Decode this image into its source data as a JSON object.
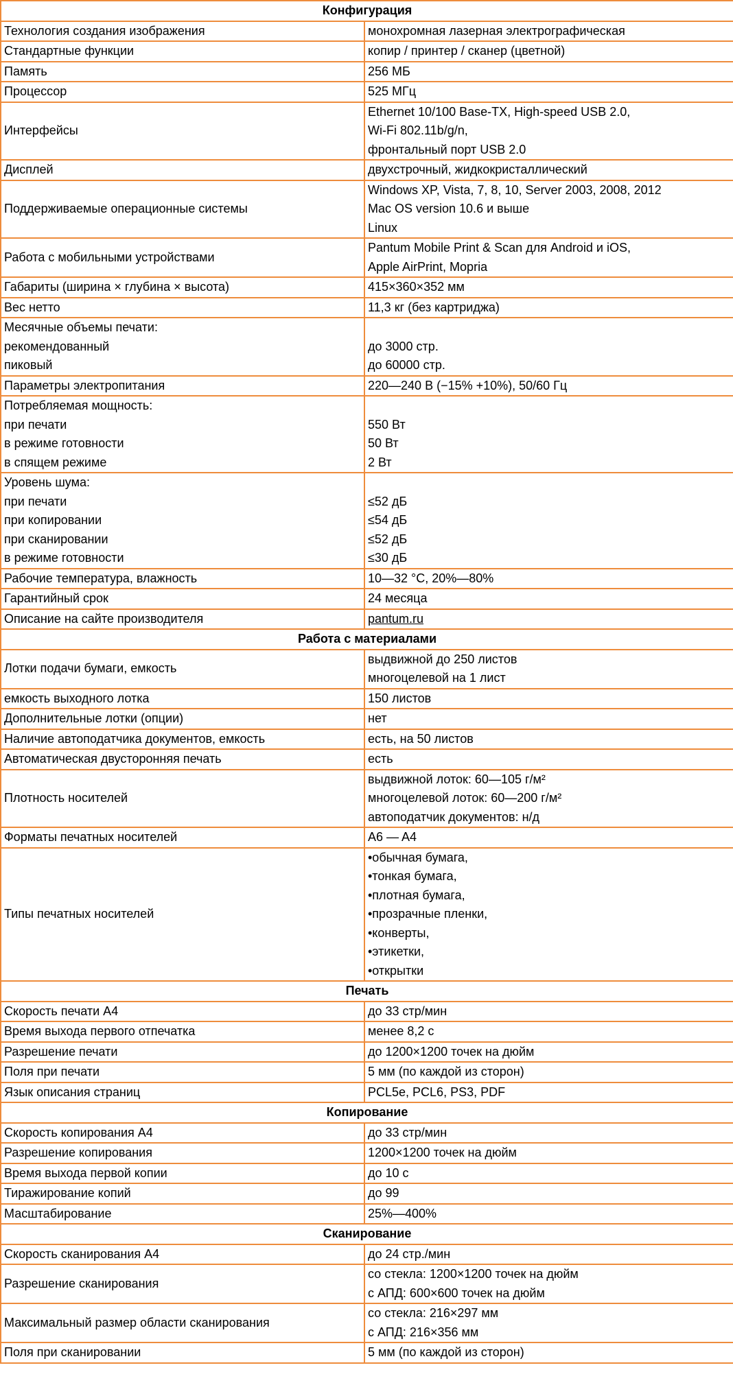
{
  "sections": [
    {
      "title": "Конфигурация",
      "rows": [
        {
          "label": [
            "Технология создания изображения"
          ],
          "value": [
            "монохромная лазерная электрографическая"
          ]
        },
        {
          "label": [
            "Стандартные функции"
          ],
          "value": [
            "копир / принтер / сканер (цветной)"
          ]
        },
        {
          "label": [
            "Память"
          ],
          "value": [
            "256 МБ"
          ]
        },
        {
          "label": [
            "Процессор"
          ],
          "value": [
            "525 МГц"
          ]
        },
        {
          "label": [
            "Интерфейсы"
          ],
          "value": [
            "Ethernet 10/100 Base-TX, High-speed USB 2.0,",
            "Wi-Fi 802.11b/g/n,",
            "фронтальный порт USB 2.0"
          ]
        },
        {
          "label": [
            "Дисплей"
          ],
          "value": [
            "двухстрочный, жидкокристаллический"
          ]
        },
        {
          "label": [
            "Поддерживаемые операционные системы"
          ],
          "value": [
            "Windows XP, Vista, 7, 8, 10, Server 2003, 2008, 2012",
            "Mac OS version 10.6 и выше",
            "Linux"
          ]
        },
        {
          "label": [
            "Работа с мобильными устройствами"
          ],
          "value": [
            "Pantum Mobile Print & Scan для Android и iOS,",
            "Apple AirPrint, Mopria"
          ]
        },
        {
          "label": [
            "Габариты (ширина × глубина × высота)"
          ],
          "value": [
            "415×360×352 мм"
          ]
        },
        {
          "label": [
            "Вес нетто"
          ],
          "value": [
            "11,3 кг (без картриджа)"
          ]
        },
        {
          "label": [
            "Месячные объемы печати:",
            "рекомендованный",
            "пиковый"
          ],
          "value": [
            "до 3000 стр.",
            "до 60000 стр."
          ]
        },
        {
          "label": [
            "Параметры электропитания"
          ],
          "value": [
            "220—240 В (−15% +10%), 50/60 Гц"
          ]
        },
        {
          "label": [
            "Потребляемая мощность:",
            "при печати",
            "в режиме готовности",
            "в спящем режиме"
          ],
          "value": [
            "550 Вт",
            "50 Вт",
            "2 Вт"
          ]
        },
        {
          "label": [
            "Уровень шума:",
            "при печати",
            "при копировании",
            "при сканировании",
            "в режиме готовности"
          ],
          "value": [
            "≤52 дБ",
            "≤54 дБ",
            "≤52 дБ",
            "≤30 дБ"
          ]
        },
        {
          "label": [
            "Рабочие температура, влажность"
          ],
          "value": [
            "10—32 °C, 20%—80%"
          ]
        },
        {
          "label": [
            "Гарантийный срок"
          ],
          "value": [
            "24 месяца"
          ]
        },
        {
          "label": [
            "Описание на сайте производителя"
          ],
          "value": [
            "pantum.ru"
          ],
          "link": true
        }
      ]
    },
    {
      "title": "Работа с материалами",
      "rows": [
        {
          "label": [
            "Лотки подачи бумаги, емкость"
          ],
          "value": [
            "выдвижной до 250 листов",
            "многоцелевой на 1 лист"
          ]
        },
        {
          "label": [
            "емкость выходного лотка"
          ],
          "value": [
            "150 листов"
          ]
        },
        {
          "label": [
            "Дополнительные лотки (опции)"
          ],
          "value": [
            "нет"
          ]
        },
        {
          "label": [
            "Наличие автоподатчика документов, емкость"
          ],
          "value": [
            "есть, на 50 листов"
          ]
        },
        {
          "label": [
            "Автоматическая двусторонняя печать"
          ],
          "value": [
            "есть"
          ]
        },
        {
          "label": [
            "Плотность носителей"
          ],
          "value": [
            "выдвижной лоток: 60—105 г/м²",
            "многоцелевой лоток: 60—200 г/м²",
            "автоподатчик документов: н/д"
          ]
        },
        {
          "label": [
            "Форматы печатных носителей"
          ],
          "value": [
            "A6 — A4"
          ]
        },
        {
          "label": [
            "Типы печатных носителей"
          ],
          "value": [
            "•обычная бумага,",
            "•тонкая бумага,",
            "•плотная бумага,",
            "•прозрачные пленки,",
            "•конверты,",
            "•этикетки,",
            "•открытки"
          ]
        }
      ]
    },
    {
      "title": "Печать",
      "rows": [
        {
          "label": [
            "Скорость печати A4"
          ],
          "value": [
            "до 33 стр/мин"
          ]
        },
        {
          "label": [
            "Время выхода первого отпечатка"
          ],
          "value": [
            "менее 8,2 с"
          ]
        },
        {
          "label": [
            "Разрешение печати"
          ],
          "value": [
            "до 1200×1200 точек на дюйм"
          ]
        },
        {
          "label": [
            "Поля при печати"
          ],
          "value": [
            "5 мм (по каждой из сторон)"
          ]
        },
        {
          "label": [
            "Язык описания страниц"
          ],
          "value": [
            "PCL5e, PCL6, PS3, PDF"
          ]
        }
      ]
    },
    {
      "title": "Копирование",
      "rows": [
        {
          "label": [
            "Скорость копирования A4"
          ],
          "value": [
            "до 33 стр/мин"
          ]
        },
        {
          "label": [
            "Разрешение копирования"
          ],
          "value": [
            "1200×1200 точек на дюйм"
          ]
        },
        {
          "label": [
            "Время выхода первой копии"
          ],
          "value": [
            "до 10 с"
          ]
        },
        {
          "label": [
            "Тиражирование копий"
          ],
          "value": [
            "до 99"
          ]
        },
        {
          "label": [
            "Масштабирование"
          ],
          "value": [
            "25%—400%"
          ]
        }
      ]
    },
    {
      "title": "Сканирование",
      "rows": [
        {
          "label": [
            "Скорость сканирования A4"
          ],
          "value": [
            "до 24 стр./мин"
          ]
        },
        {
          "label": [
            "Разрешение сканирования"
          ],
          "value": [
            "со стекла: 1200×1200 точек на дюйм",
            "с АПД: 600×600 точек на дюйм"
          ]
        },
        {
          "label": [
            "Максимальный размер области сканирования"
          ],
          "value": [
            "со стекла: 216×297 мм",
            "с АПД: 216×356 мм"
          ]
        },
        {
          "label": [
            "Поля при сканировании"
          ],
          "value": [
            "5 мм (по каждой из сторон)"
          ]
        }
      ]
    }
  ]
}
